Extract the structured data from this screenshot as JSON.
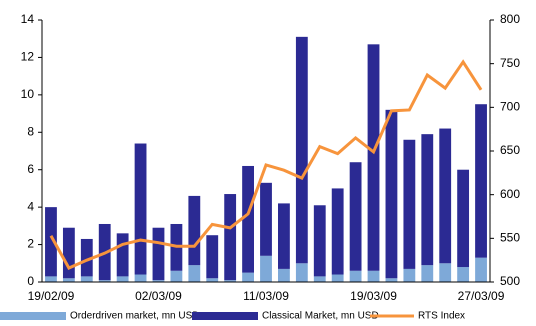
{
  "chart_data": {
    "type": "bar_line",
    "categories": [
      "19/02/09",
      null,
      null,
      null,
      null,
      null,
      "02/03/09",
      null,
      null,
      null,
      null,
      null,
      "11/03/09",
      null,
      null,
      null,
      null,
      null,
      "19/03/09",
      null,
      null,
      null,
      null,
      null,
      "27/03/09"
    ],
    "series": [
      {
        "name": "Orderdriven market, mn USD",
        "color": "#7ea9d8",
        "values": [
          0.3,
          0.2,
          0.3,
          0.1,
          0.3,
          0.4,
          0.1,
          0.6,
          0.9,
          0.2,
          0.1,
          0.5,
          1.4,
          0.7,
          1.0,
          0.3,
          0.4,
          0.6,
          0.6,
          0.2,
          0.7,
          0.9,
          1.0,
          0.8,
          1.3
        ]
      },
      {
        "name": "Classical Market, mn USD",
        "color": "#2b2a93",
        "values": [
          3.7,
          2.7,
          2.0,
          3.0,
          2.3,
          7.0,
          2.8,
          2.5,
          3.7,
          2.3,
          4.6,
          5.7,
          3.9,
          3.5,
          12.1,
          3.8,
          4.6,
          5.8,
          12.1,
          9.0,
          6.9,
          7.0,
          7.2,
          5.2,
          8.2
        ]
      },
      {
        "name": "RTS Index",
        "color": "#f7943c",
        "axis": "y2",
        "values": [
          553,
          516,
          525,
          533,
          543,
          548,
          545,
          541,
          541,
          566,
          562,
          578,
          634,
          628,
          619,
          655,
          647,
          665,
          649,
          696,
          697,
          737,
          722,
          752,
          720
        ]
      }
    ],
    "ylim": [
      0,
      14
    ],
    "yticks": [
      0,
      2,
      4,
      6,
      8,
      10,
      12,
      14
    ],
    "y2lim": [
      500,
      800
    ],
    "y2ticks": [
      500,
      550,
      600,
      650,
      700,
      750,
      800
    ],
    "legend": "bottom"
  }
}
